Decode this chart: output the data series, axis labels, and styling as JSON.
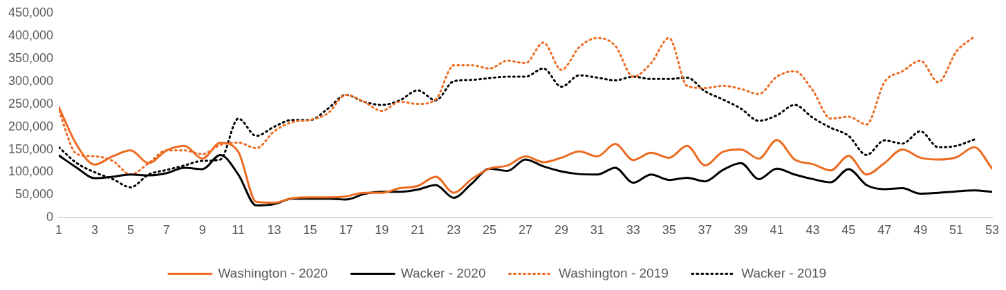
{
  "chart_data": {
    "type": "line",
    "x": [
      1,
      2,
      3,
      4,
      5,
      6,
      7,
      8,
      9,
      10,
      11,
      12,
      13,
      14,
      15,
      16,
      17,
      18,
      19,
      20,
      21,
      22,
      23,
      24,
      25,
      26,
      27,
      28,
      29,
      30,
      31,
      32,
      33,
      34,
      35,
      36,
      37,
      38,
      39,
      40,
      41,
      42,
      43,
      44,
      45,
      46,
      47,
      48,
      49,
      50,
      51,
      52,
      53
    ],
    "xlim": [
      1,
      53
    ],
    "xticks": [
      1,
      3,
      5,
      7,
      9,
      11,
      13,
      15,
      17,
      19,
      21,
      23,
      25,
      27,
      29,
      31,
      33,
      35,
      37,
      39,
      41,
      43,
      45,
      47,
      49,
      51,
      53
    ],
    "ylim": [
      0,
      450000
    ],
    "yticks": [
      0,
      {
        "value": 50000,
        "label": "50,000"
      },
      {
        "value": 100000,
        "label": "100,000"
      },
      {
        "value": 150000,
        "label": "150,000"
      },
      {
        "value": 200000,
        "label": "200,000"
      },
      {
        "value": 250000,
        "label": "250,000"
      },
      {
        "value": 300000,
        "label": "300,000"
      },
      {
        "value": 350000,
        "label": "350,000"
      },
      {
        "value": 400000,
        "label": "400,000"
      },
      {
        "value": 450000,
        "label": "450,000"
      }
    ],
    "legend": "bottom",
    "marker": "none",
    "series": [
      {
        "name": "Washington - 2020",
        "color": "#ed6b21",
        "line_style": "solid",
        "values": [
          243000,
          160000,
          117000,
          135000,
          148000,
          120000,
          148000,
          158000,
          130000,
          165000,
          145000,
          35000,
          33000,
          43000,
          45000,
          45000,
          47000,
          55000,
          55000,
          65000,
          70000,
          90000,
          55000,
          85000,
          108000,
          115000,
          135000,
          122000,
          132000,
          146000,
          135000,
          162000,
          127000,
          143000,
          132000,
          158000,
          115000,
          145000,
          150000,
          130000,
          171000,
          128000,
          118000,
          104000,
          136000,
          95000,
          120000,
          150000,
          132000,
          128000,
          133000,
          155000,
          108000
        ]
      },
      {
        "name": "Wacker - 2020",
        "color": "#000000",
        "line_style": "solid",
        "values": [
          137000,
          110000,
          87000,
          90000,
          95000,
          93000,
          98000,
          110000,
          107000,
          138000,
          95000,
          27000,
          30000,
          42000,
          42000,
          42000,
          40000,
          52000,
          57000,
          57000,
          62000,
          72000,
          44000,
          75000,
          108000,
          103000,
          128000,
          113000,
          102000,
          96000,
          95000,
          110000,
          77000,
          95000,
          83000,
          88000,
          80000,
          105000,
          120000,
          85000,
          108000,
          95000,
          85000,
          78000,
          107000,
          72000,
          63000,
          65000,
          53000,
          55000,
          58000,
          60000,
          57000
        ]
      },
      {
        "name": "Washington - 2019",
        "color": "#ed6b21",
        "line_style": "dotted",
        "values": [
          235000,
          140000,
          135000,
          125000,
          95000,
          120000,
          148000,
          148000,
          140000,
          160000,
          165000,
          153000,
          190000,
          210000,
          215000,
          230000,
          270000,
          255000,
          235000,
          255000,
          250000,
          260000,
          335000,
          335000,
          328000,
          345000,
          340000,
          385000,
          325000,
          375000,
          395000,
          378000,
          310000,
          340000,
          395000,
          290000,
          285000,
          290000,
          283000,
          272000,
          310000,
          322000,
          280000,
          218000,
          222000,
          205000,
          298000,
          322000,
          345000,
          298000,
          365000,
          398000,
          null
        ]
      },
      {
        "name": "Wacker - 2019",
        "color": "#000000",
        "line_style": "dotted",
        "values": [
          155000,
          120000,
          100000,
          85000,
          67000,
          95000,
          105000,
          115000,
          125000,
          128000,
          218000,
          180000,
          200000,
          215000,
          215000,
          240000,
          270000,
          255000,
          248000,
          258000,
          280000,
          258000,
          300000,
          303000,
          307000,
          310000,
          310000,
          328000,
          288000,
          313000,
          308000,
          302000,
          310000,
          305000,
          305000,
          308000,
          278000,
          260000,
          240000,
          213000,
          225000,
          248000,
          220000,
          198000,
          180000,
          138000,
          170000,
          163000,
          190000,
          155000,
          158000,
          172000,
          null
        ]
      }
    ]
  }
}
